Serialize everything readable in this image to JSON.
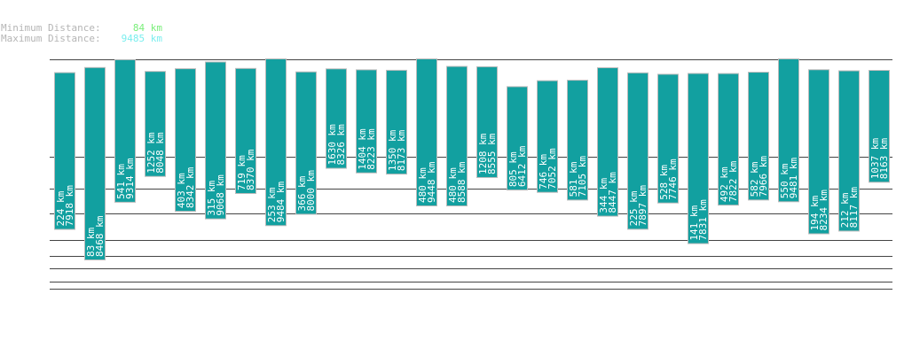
{
  "summary": {
    "min_label": "Minimum Distance:",
    "min_value": "84 km",
    "max_label": "Maximum Distance:",
    "max_value": "9485 km",
    "min_color": "#7aee7a",
    "max_color": "#7aeeee"
  },
  "chart_data": {
    "type": "bar",
    "subtype": "floating-range",
    "unit": "km",
    "bar_color": "#12a0a0",
    "grid": true,
    "series": [
      {
        "min": 224,
        "max": 7918
      },
      {
        "min": 83,
        "max": 8468
      },
      {
        "min": 541,
        "max": 9314
      },
      {
        "min": 1252,
        "max": 8048
      },
      {
        "min": 403,
        "max": 8342
      },
      {
        "min": 315,
        "max": 9068
      },
      {
        "min": 719,
        "max": 8370
      },
      {
        "min": 253,
        "max": 9484
      },
      {
        "min": 366,
        "max": 8000
      },
      {
        "min": 1630,
        "max": 8326
      },
      {
        "min": 1404,
        "max": 8223
      },
      {
        "min": 1350,
        "max": 8173
      },
      {
        "min": 480,
        "max": 9448
      },
      {
        "min": 480,
        "max": 8588
      },
      {
        "min": 1208,
        "max": 8555
      },
      {
        "min": 805,
        "max": 6412
      },
      {
        "min": 746,
        "max": 7052
      },
      {
        "min": 581,
        "max": 7105
      },
      {
        "min": 344,
        "max": 8447
      },
      {
        "min": 225,
        "max": 7897
      },
      {
        "min": 528,
        "max": 7746
      },
      {
        "min": 141,
        "max": 7831
      },
      {
        "min": 492,
        "max": 7822
      },
      {
        "min": 582,
        "max": 7966
      },
      {
        "min": 550,
        "max": 9481
      },
      {
        "min": 194,
        "max": 8234
      },
      {
        "min": 212,
        "max": 8117
      },
      {
        "min": 1037,
        "max": 8163
      }
    ]
  }
}
